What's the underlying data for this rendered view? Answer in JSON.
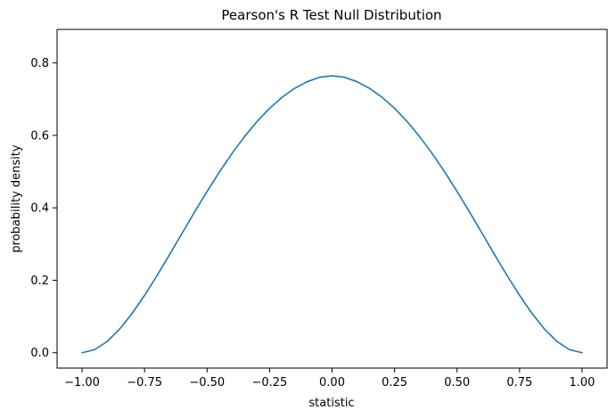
{
  "chart_data": {
    "type": "line",
    "title": "Pearson's R Test Null Distribution",
    "xlabel": "statistic",
    "ylabel": "probability density",
    "xlim": [
      -1.1,
      1.1
    ],
    "ylim": [
      -0.0425,
      0.8925
    ],
    "x_ticks": [
      -1.0,
      -0.75,
      -0.5,
      -0.25,
      0.0,
      0.25,
      0.5,
      0.75,
      1.0
    ],
    "x_tick_labels": [
      "−1.00",
      "−0.75",
      "−0.50",
      "−0.25",
      "0.00",
      "0.25",
      "0.50",
      "0.75",
      "1.00"
    ],
    "y_ticks": [
      0.0,
      0.2,
      0.4,
      0.6,
      0.8
    ],
    "y_tick_labels": [
      "0.0",
      "0.2",
      "0.4",
      "0.6",
      "0.8"
    ],
    "grid": false,
    "series": [
      {
        "color": "#1f77b4",
        "x": [
          -1.0,
          -0.95,
          -0.9,
          -0.85,
          -0.8,
          -0.75,
          -0.7,
          -0.65,
          -0.6,
          -0.55,
          -0.5,
          -0.45,
          -0.4,
          -0.35,
          -0.3,
          -0.25,
          -0.2,
          -0.15,
          -0.1,
          -0.05,
          0.0,
          0.05,
          0.1,
          0.15,
          0.2,
          0.25,
          0.3,
          0.35,
          0.4,
          0.45,
          0.5,
          0.55,
          0.6,
          0.65,
          0.7,
          0.75,
          0.8,
          0.85,
          0.9,
          0.95,
          1.0
        ],
        "y": [
          0.0,
          0.0082,
          0.0307,
          0.0649,
          0.1082,
          0.1583,
          0.2131,
          0.2708,
          0.3296,
          0.3882,
          0.4452,
          0.4995,
          0.5503,
          0.5968,
          0.6384,
          0.6746,
          0.7051,
          0.7297,
          0.7481,
          0.7603,
          0.7645,
          0.7603,
          0.7481,
          0.7297,
          0.7051,
          0.6746,
          0.6384,
          0.5968,
          0.5503,
          0.4995,
          0.4452,
          0.3882,
          0.3296,
          0.2708,
          0.2131,
          0.1583,
          0.1082,
          0.0649,
          0.0307,
          0.0082,
          0.0
        ]
      }
    ]
  }
}
